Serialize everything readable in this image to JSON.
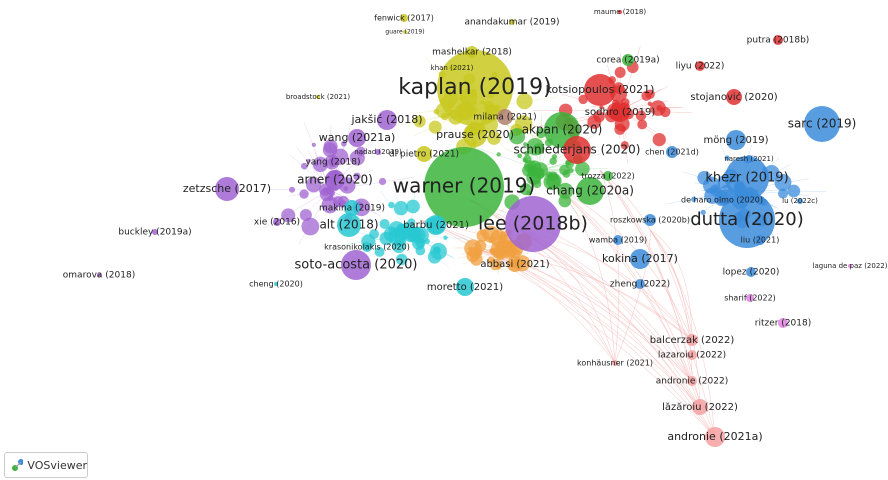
{
  "brand": "VOSviewer",
  "nodes": [
    {
      "label": "fenwick (2017)",
      "color": "#c8c820"
    },
    {
      "label": "guare (2019)",
      "color": "#c8c820"
    },
    {
      "label": "anandakumar (2019)",
      "color": "#c8c820"
    },
    {
      "label": "maume (2018)",
      "color": "#e03030"
    },
    {
      "label": "putra (2018b)",
      "color": "#e03030"
    },
    {
      "label": "mashelkar (2018)",
      "color": "#c8c820"
    },
    {
      "label": "khan (2021)",
      "color": "#c8c820"
    },
    {
      "label": "corea (2019a)",
      "color": "#3cb43c"
    },
    {
      "label": "liyu (2022)",
      "color": "#e03030"
    },
    {
      "label": "kaplan (2019)",
      "color": "#c8c820"
    },
    {
      "label": "kotsiopoulos (2021)",
      "color": "#e03030"
    },
    {
      "label": "broadstock (2021)",
      "color": "#c8c820"
    },
    {
      "label": "sodhro (2019)",
      "color": "#e03030"
    },
    {
      "label": "stojanović (2020)",
      "color": "#e03030"
    },
    {
      "label": "jakšić (2018)",
      "color": "#a064d2"
    },
    {
      "label": "milana (2021)",
      "color": "#b08070"
    },
    {
      "label": "wang (2021a)",
      "color": "#a064d2"
    },
    {
      "label": "prause (2020)",
      "color": "#c8c820"
    },
    {
      "label": "akpan (2020)",
      "color": "#3cb43c"
    },
    {
      "label": "möng (2019)",
      "color": "#3c8cdc"
    },
    {
      "label": "sarc (2019)",
      "color": "#3c8cdc"
    },
    {
      "label": "nadad (2019)",
      "color": "#a064d2"
    },
    {
      "label": "di pietro (2021)",
      "color": "#c8c820"
    },
    {
      "label": "schniederjans (2020)",
      "color": "#e03030"
    },
    {
      "label": "chen (2021d)",
      "color": "#3c8cdc"
    },
    {
      "label": "yang (2018)",
      "color": "#a064d2"
    },
    {
      "label": "naresh (2021)",
      "color": "#3c8cdc"
    },
    {
      "label": "arner (2020)",
      "color": "#a064d2"
    },
    {
      "label": "warner (2019)",
      "color": "#3cb43c"
    },
    {
      "label": "chang (2020a)",
      "color": "#3cb43c"
    },
    {
      "label": "khezr (2019)",
      "color": "#3c8cdc"
    },
    {
      "label": "zetzsche (2017)",
      "color": "#a064d2"
    },
    {
      "label": "trozza (2022)",
      "color": "#3cb43c"
    },
    {
      "label": "dutta (2020)",
      "color": "#3c8cdc"
    },
    {
      "label": "lu (2022c)",
      "color": "#3c8cdc"
    },
    {
      "label": "makina (2019)",
      "color": "#28c8d2"
    },
    {
      "label": "xie (2016)",
      "color": "#a064d2"
    },
    {
      "label": "lee (2018b)",
      "color": "#a064d2"
    },
    {
      "label": "alt (2018)",
      "color": "#28c8d2"
    },
    {
      "label": "barbu (2021)",
      "color": "#28c8d2"
    },
    {
      "label": "roszkowska (2020b)",
      "color": "#3c8cdc"
    },
    {
      "label": "de haro olmo (2020)",
      "color": "#3c8cdc"
    },
    {
      "label": "buckley (2019a)",
      "color": "#a064d2"
    },
    {
      "label": "krasonikolakis (2020)",
      "color": "#28c8d2"
    },
    {
      "label": "wamba (2019)",
      "color": "#3c8cdc"
    },
    {
      "label": "liu (2021)",
      "color": "#3c8cdc"
    },
    {
      "label": "soto-acosta (2020)",
      "color": "#a064d2"
    },
    {
      "label": "abbasi (2021)",
      "color": "#f0a040"
    },
    {
      "label": "kokina (2017)",
      "color": "#3c8cdc"
    },
    {
      "label": "lopez (2020)",
      "color": "#3c8cdc"
    },
    {
      "label": "laguna de paz (2022)",
      "color": "#e080e0"
    },
    {
      "label": "omarova (2018)",
      "color": "#a064d2"
    },
    {
      "label": "cheng (2020)",
      "color": "#28c8d2"
    },
    {
      "label": "zheng (2022)",
      "color": "#3c8cdc"
    },
    {
      "label": "sharif (2022)",
      "color": "#e080e0"
    },
    {
      "label": "moretto (2021)",
      "color": "#28c8d2"
    },
    {
      "label": "ritzer (2018)",
      "color": "#e080e0"
    },
    {
      "label": "balcerzak (2022)",
      "color": "#f4a0a0"
    },
    {
      "label": "lazaroiu (2022)",
      "color": "#f4a0a0"
    },
    {
      "label": "konhäusner (2021)",
      "color": "#f4a0a0"
    },
    {
      "label": "andronie (2022)",
      "color": "#f4a0a0"
    },
    {
      "label": "lăzăroiu (2022)",
      "color": "#f4a0a0"
    },
    {
      "label": "andronie (2021a)",
      "color": "#f4a0a0"
    }
  ]
}
